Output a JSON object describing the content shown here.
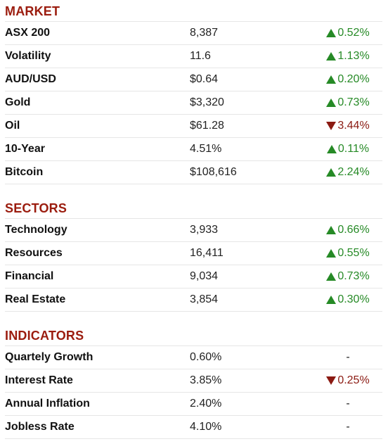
{
  "colors": {
    "heading": "#9b1c0e",
    "up": "#268a26",
    "down": "#8b1a12"
  },
  "sections": [
    {
      "title": "MARKET",
      "rows": [
        {
          "name": "ASX 200",
          "value": "8,387",
          "change": "0.52%",
          "direction": "up",
          "icon": "triangle-up-icon"
        },
        {
          "name": "Volatility",
          "value": "11.6",
          "change": "1.13%",
          "direction": "up",
          "icon": "triangle-up-icon"
        },
        {
          "name": "AUD/USD",
          "value": "$0.64",
          "change": "0.20%",
          "direction": "up",
          "icon": "triangle-up-icon"
        },
        {
          "name": "Gold",
          "value": "$3,320",
          "change": "0.73%",
          "direction": "up",
          "icon": "triangle-up-icon"
        },
        {
          "name": "Oil",
          "value": "$61.28",
          "change": "3.44%",
          "direction": "down",
          "icon": "triangle-down-icon"
        },
        {
          "name": "10-Year",
          "value": "4.51%",
          "change": "0.11%",
          "direction": "up",
          "icon": "triangle-up-icon"
        },
        {
          "name": "Bitcoin",
          "value": "$108,616",
          "change": "2.24%",
          "direction": "up",
          "icon": "triangle-up-icon"
        }
      ]
    },
    {
      "title": "SECTORS",
      "rows": [
        {
          "name": "Technology",
          "value": "3,933",
          "change": "0.66%",
          "direction": "up",
          "icon": "triangle-up-icon"
        },
        {
          "name": "Resources",
          "value": "16,411",
          "change": "0.55%",
          "direction": "up",
          "icon": "triangle-up-icon"
        },
        {
          "name": "Financial",
          "value": "9,034",
          "change": "0.73%",
          "direction": "up",
          "icon": "triangle-up-icon"
        },
        {
          "name": "Real Estate",
          "value": "3,854",
          "change": "0.30%",
          "direction": "up",
          "icon": "triangle-up-icon"
        }
      ]
    },
    {
      "title": "INDICATORS",
      "rows": [
        {
          "name": "Quartely Growth",
          "value": "0.60%",
          "change": "-",
          "direction": "flat",
          "icon": ""
        },
        {
          "name": "Interest Rate",
          "value": "3.85%",
          "change": "0.25%",
          "direction": "down",
          "icon": "triangle-down-icon"
        },
        {
          "name": "Annual Inflation",
          "value": "2.40%",
          "change": "-",
          "direction": "flat",
          "icon": ""
        },
        {
          "name": "Jobless Rate",
          "value": "4.10%",
          "change": "-",
          "direction": "flat",
          "icon": ""
        }
      ]
    }
  ]
}
